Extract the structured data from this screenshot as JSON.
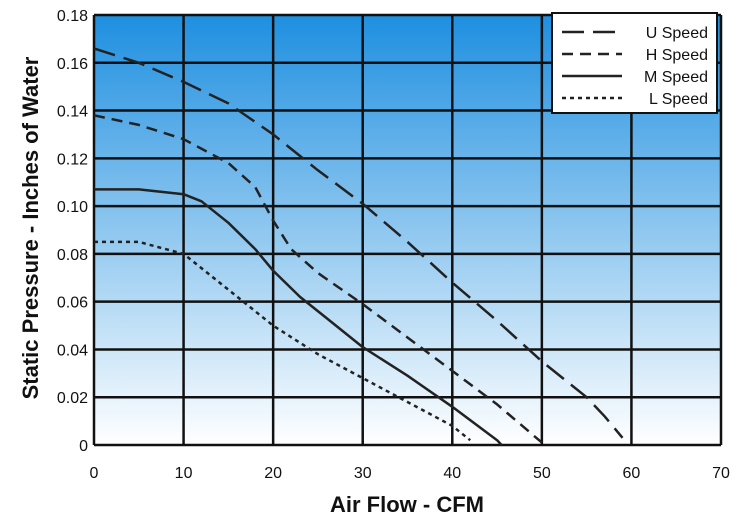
{
  "chart_data": {
    "type": "line",
    "title": "",
    "xlabel": "Air Flow - CFM",
    "ylabel": "Static Pressure - Inches of Water",
    "xlim": [
      0,
      70
    ],
    "ylim": [
      0,
      0.18
    ],
    "x_ticks": [
      "0",
      "10",
      "20",
      "30",
      "40",
      "50",
      "60",
      "70"
    ],
    "y_ticks": [
      "0",
      "0.02",
      "0.04",
      "0.06",
      "0.08",
      "0.10",
      "0.12",
      "0.14",
      "0.16",
      "0.18"
    ],
    "grid": true,
    "legend_position": "top-right",
    "background": "vertical gradient, blue at top to white at bottom",
    "colors": {
      "gradient_top": "#1e8fe0",
      "gradient_bottom": "#ffffff",
      "grid": "#111111",
      "lines": "#222222"
    },
    "series": [
      {
        "name": "U Speed",
        "dash": "long-dash",
        "points": [
          [
            0,
            0.166
          ],
          [
            5,
            0.16
          ],
          [
            10,
            0.152
          ],
          [
            15,
            0.143
          ],
          [
            20,
            0.13
          ],
          [
            25,
            0.115
          ],
          [
            30,
            0.101
          ],
          [
            35,
            0.085
          ],
          [
            40,
            0.068
          ],
          [
            45,
            0.052
          ],
          [
            50,
            0.035
          ],
          [
            55,
            0.02
          ],
          [
            57,
            0.012
          ],
          [
            59,
            0.003
          ]
        ]
      },
      {
        "name": "H Speed",
        "dash": "short-dash",
        "points": [
          [
            0,
            0.138
          ],
          [
            5,
            0.134
          ],
          [
            10,
            0.128
          ],
          [
            15,
            0.118
          ],
          [
            18,
            0.108
          ],
          [
            20,
            0.094
          ],
          [
            22,
            0.082
          ],
          [
            25,
            0.072
          ],
          [
            30,
            0.059
          ],
          [
            35,
            0.045
          ],
          [
            40,
            0.031
          ],
          [
            45,
            0.017
          ],
          [
            50,
            0.001
          ]
        ]
      },
      {
        "name": "M Speed",
        "dash": "solid",
        "points": [
          [
            0,
            0.107
          ],
          [
            5,
            0.107
          ],
          [
            10,
            0.105
          ],
          [
            12,
            0.102
          ],
          [
            15,
            0.093
          ],
          [
            18,
            0.082
          ],
          [
            20,
            0.073
          ],
          [
            23,
            0.062
          ],
          [
            26,
            0.053
          ],
          [
            30,
            0.041
          ],
          [
            35,
            0.029
          ],
          [
            40,
            0.016
          ],
          [
            45,
            0.002
          ],
          [
            45.5,
            0
          ]
        ]
      },
      {
        "name": "L Speed",
        "dash": "dotted",
        "points": [
          [
            0,
            0.085
          ],
          [
            5,
            0.085
          ],
          [
            10,
            0.08
          ],
          [
            15,
            0.065
          ],
          [
            20,
            0.05
          ],
          [
            25,
            0.038
          ],
          [
            30,
            0.028
          ],
          [
            35,
            0.018
          ],
          [
            40,
            0.008
          ],
          [
            42,
            0.002
          ]
        ]
      }
    ]
  }
}
